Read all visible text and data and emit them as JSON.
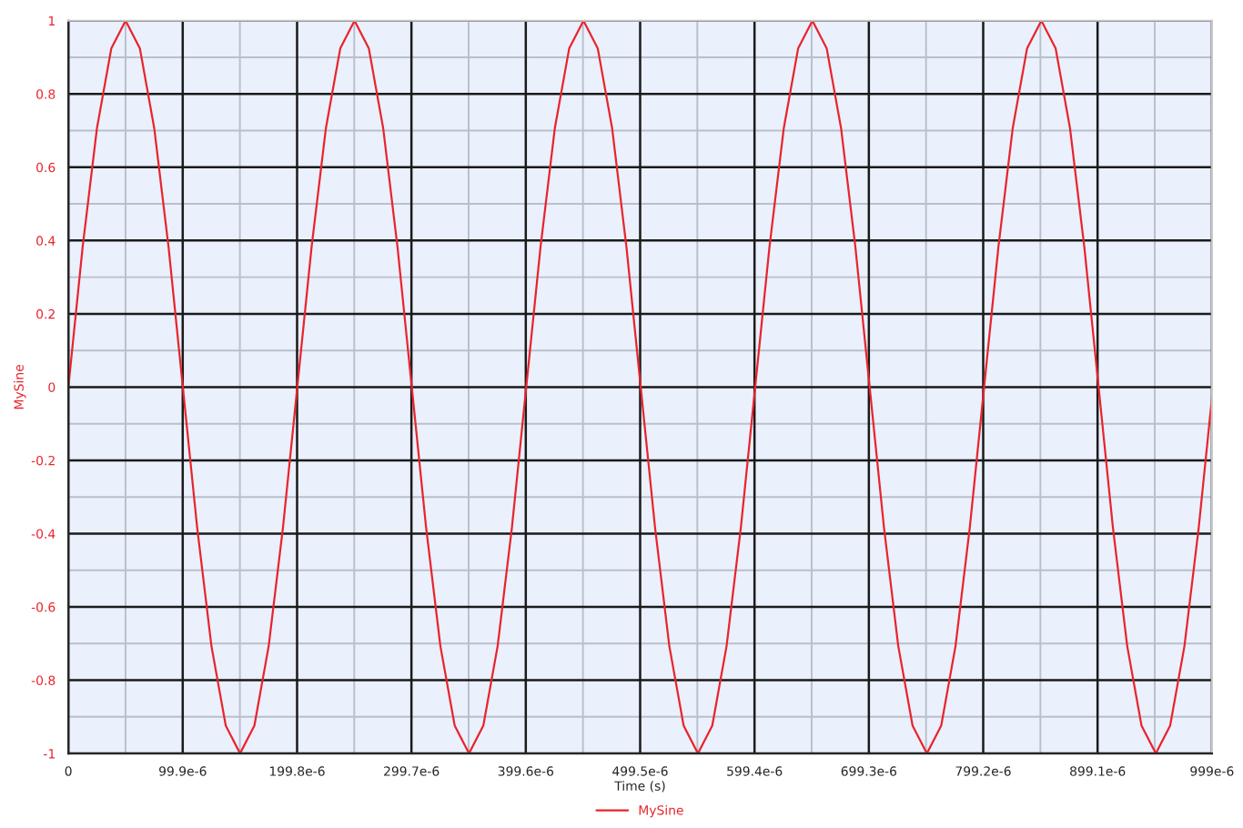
{
  "chart_data": {
    "type": "line",
    "xlabel": "Time (s)",
    "ylabel": "MySine",
    "x": [
      0,
      1.25e-05,
      2.5e-05,
      3.75e-05,
      5e-05,
      6.25e-05,
      7.5e-05,
      8.75e-05,
      0.0001,
      0.0001125,
      0.000125,
      0.0001375,
      0.00015,
      0.0001625,
      0.000175,
      0.0001875,
      0.0002,
      0.0002125,
      0.000225,
      0.0002375,
      0.00025,
      0.0002625,
      0.000275,
      0.0002875,
      0.0003,
      0.0003125,
      0.000325,
      0.0003375,
      0.00035,
      0.0003625,
      0.000375,
      0.0003875,
      0.0004,
      0.0004125,
      0.000425,
      0.0004375,
      0.00045,
      0.0004625,
      0.000475,
      0.0004875,
      0.0005,
      0.0005125,
      0.000525,
      0.0005375,
      0.00055,
      0.0005625,
      0.000575,
      0.0005875,
      0.0006,
      0.0006125,
      0.000625,
      0.0006375,
      0.00065,
      0.0006625,
      0.000675,
      0.0006875,
      0.0007,
      0.0007125,
      0.000725,
      0.0007375,
      0.00075,
      0.0007625,
      0.000775,
      0.0007875,
      0.0008,
      0.0008125,
      0.000825,
      0.0008375,
      0.00085,
      0.0008625,
      0.000875,
      0.0008875,
      0.0009,
      0.0009125,
      0.000925,
      0.0009375,
      0.00095,
      0.0009625,
      0.000975,
      0.0009875,
      0.000999
    ],
    "series": [
      {
        "name": "MySine",
        "color": "#e8242c",
        "values": [
          0,
          0.383,
          0.707,
          0.924,
          1,
          0.924,
          0.707,
          0.383,
          0,
          -0.383,
          -0.707,
          -0.924,
          -1,
          -0.924,
          -0.707,
          -0.383,
          0,
          0.383,
          0.707,
          0.924,
          1,
          0.924,
          0.707,
          0.383,
          0,
          -0.383,
          -0.707,
          -0.924,
          -1,
          -0.924,
          -0.707,
          -0.383,
          0,
          0.383,
          0.707,
          0.924,
          1,
          0.924,
          0.707,
          0.383,
          0,
          -0.383,
          -0.707,
          -0.924,
          -1,
          -0.924,
          -0.707,
          -0.383,
          0,
          0.383,
          0.707,
          0.924,
          1,
          0.924,
          0.707,
          0.383,
          0,
          -0.383,
          -0.707,
          -0.924,
          -1,
          -0.924,
          -0.707,
          -0.383,
          0,
          0.383,
          0.707,
          0.924,
          1,
          0.924,
          0.707,
          0.383,
          0,
          -0.383,
          -0.707,
          -0.924,
          -1,
          -0.924,
          -0.707,
          -0.383,
          -0.03
        ]
      }
    ],
    "xlim": [
      0,
      0.000999
    ],
    "xticks": [
      0,
      {
        "value": 9.99e-05,
        "label": "99.9e-6"
      },
      {
        "value": 0.0001998,
        "label": "199.8e-6"
      },
      {
        "value": 0.0002997,
        "label": "299.7e-6"
      },
      {
        "value": 0.0003996,
        "label": "399.6e-6"
      },
      {
        "value": 0.0004995,
        "label": "499.5e-6"
      },
      {
        "value": 0.0005994,
        "label": "599.4e-6"
      },
      {
        "value": 0.0006993,
        "label": "699.3e-6"
      },
      {
        "value": 0.0007992,
        "label": "799.2e-6"
      },
      {
        "value": 0.0008991,
        "label": "899.1e-6"
      },
      {
        "value": 0.000999,
        "label": "999e-6"
      }
    ],
    "ylim": [
      -1,
      1
    ],
    "yticks": [
      -1,
      -0.8,
      -0.6,
      -0.4,
      -0.2,
      0,
      0.2,
      0.4,
      0.6,
      0.8,
      1
    ],
    "grid": true,
    "legend": "bottom",
    "marker": "none",
    "line_style": "solid"
  }
}
